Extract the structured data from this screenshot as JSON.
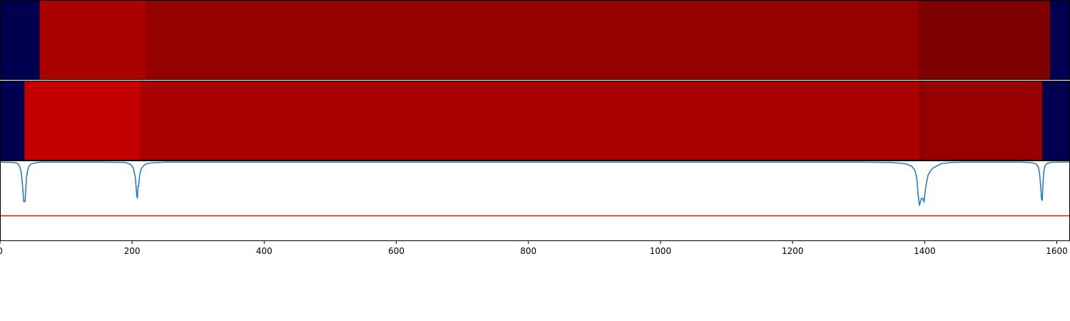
{
  "chart_data": {
    "type": "heatmap",
    "xlim": [
      0,
      1620
    ],
    "x_ticks": [
      0,
      200,
      400,
      600,
      800,
      1000,
      1200,
      1400,
      1600
    ],
    "x_tick_labels": [
      "0",
      "200",
      "400",
      "600",
      "800",
      "1000",
      "1200",
      "1400",
      "1600"
    ],
    "background_color": "#000050",
    "segment_tracks": [
      {
        "segments": [
          {
            "start": 0,
            "end": 60,
            "color": "#000050"
          },
          {
            "start": 60,
            "end": 220,
            "color": "#aa0000"
          },
          {
            "start": 220,
            "end": 1390,
            "color": "#950000"
          },
          {
            "start": 1390,
            "end": 1590,
            "color": "#7e0000"
          },
          {
            "start": 1590,
            "end": 1620,
            "color": "#000050"
          }
        ]
      },
      {
        "segments": [
          {
            "start": 0,
            "end": 37,
            "color": "#000050"
          },
          {
            "start": 37,
            "end": 212,
            "color": "#c20000"
          },
          {
            "start": 212,
            "end": 1392,
            "color": "#aa0000"
          },
          {
            "start": 1392,
            "end": 1399,
            "color": "#880000"
          },
          {
            "start": 1399,
            "end": 1578,
            "color": "#960000"
          },
          {
            "start": 1578,
            "end": 1620,
            "color": "#000050"
          }
        ]
      }
    ],
    "signal_panel": {
      "ylim": [
        -1.0,
        0.02
      ],
      "threshold": -0.68,
      "threshold_color": "#ee1111",
      "line_color": "#1f77b4",
      "x": [
        0,
        20,
        25,
        28,
        30,
        32,
        34,
        36,
        38,
        40,
        42,
        44,
        48,
        60,
        150,
        190,
        198,
        202,
        205,
        207,
        208,
        209,
        210,
        211,
        212,
        214,
        218,
        222,
        230,
        250,
        300,
        1300,
        1350,
        1370,
        1380,
        1385,
        1388,
        1390,
        1392,
        1393,
        1395,
        1397,
        1399,
        1401,
        1403,
        1405,
        1408,
        1412,
        1418,
        1425,
        1440,
        1460,
        1540,
        1560,
        1568,
        1572,
        1574,
        1576,
        1577,
        1578,
        1579,
        1580,
        1582,
        1585,
        1590,
        1600,
        1620
      ],
      "y": [
        0,
        -0.005,
        -0.01,
        -0.03,
        -0.06,
        -0.12,
        -0.28,
        -0.5,
        -0.5,
        -0.2,
        -0.1,
        -0.05,
        -0.02,
        0,
        0,
        -0.005,
        -0.03,
        -0.08,
        -0.2,
        -0.42,
        -0.46,
        -0.3,
        -0.3,
        -0.2,
        -0.14,
        -0.08,
        -0.04,
        -0.02,
        -0.01,
        0,
        0,
        0,
        -0.005,
        -0.02,
        -0.05,
        -0.1,
        -0.2,
        -0.4,
        -0.55,
        -0.52,
        -0.46,
        -0.46,
        -0.5,
        -0.35,
        -0.25,
        -0.17,
        -0.12,
        -0.08,
        -0.05,
        -0.02,
        -0.005,
        0,
        0,
        -0.005,
        -0.02,
        -0.06,
        -0.15,
        -0.35,
        -0.47,
        -0.48,
        -0.3,
        -0.15,
        -0.05,
        -0.02,
        -0.005,
        0,
        0
      ]
    }
  }
}
